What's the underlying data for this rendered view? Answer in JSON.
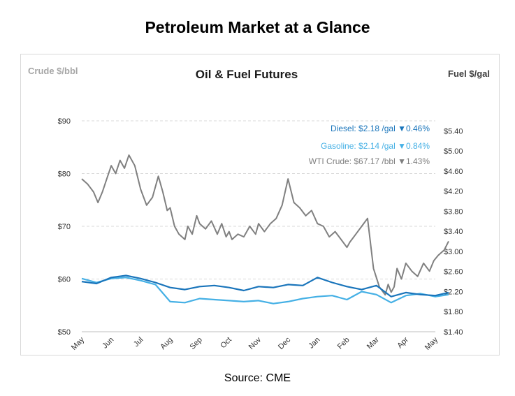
{
  "page": {
    "title": "Petroleum Market at a Glance",
    "source": "Source: CME"
  },
  "chart_data": {
    "type": "line",
    "title": "Oil & Fuel Futures",
    "left_axis_label": "Crude $/bbl",
    "right_axis_label": "Fuel $/gal",
    "left_ticks": [
      "$50",
      "$60",
      "$70",
      "$80",
      "$90"
    ],
    "left_range": [
      50,
      90
    ],
    "right_ticks": [
      "$1.40",
      "$1.80",
      "$2.20",
      "$2.60",
      "$3.00",
      "$3.40",
      "$3.80",
      "$4.20",
      "$4.60",
      "$5.00",
      "$5.40"
    ],
    "right_range": [
      1.4,
      5.6
    ],
    "x_labels": [
      "May",
      "Jun",
      "Jul",
      "Aug",
      "Sep",
      "Oct",
      "Nov",
      "Dec",
      "Jan",
      "Feb",
      "Mar",
      "Apr",
      "May"
    ],
    "grid": "horizontal dashed",
    "colors": {
      "diesel": "#1a75bb",
      "gasoline": "#45b0e5",
      "crude": "#808080"
    },
    "legend": [
      {
        "label": "Diesel:",
        "value": "$2.18 /gal",
        "change": "▼0.46%"
      },
      {
        "label": "Gasoline:",
        "value": "$2.14 /gal",
        "change": "▼0.84%"
      },
      {
        "label": "WTI Crude:",
        "value": "$67.17 /bbl",
        "change": "▼1.43%"
      }
    ],
    "series": [
      {
        "name": "WTI Crude",
        "axis": "left",
        "x": [
          0,
          0.2,
          0.4,
          0.55,
          0.7,
          0.85,
          1.0,
          1.15,
          1.3,
          1.45,
          1.6,
          1.8,
          2.0,
          2.2,
          2.4,
          2.6,
          2.75,
          2.9,
          3.0,
          3.15,
          3.3,
          3.5,
          3.6,
          3.75,
          3.9,
          4.0,
          4.2,
          4.4,
          4.6,
          4.75,
          4.9,
          5.0,
          5.1,
          5.3,
          5.5,
          5.7,
          5.9,
          6.0,
          6.2,
          6.4,
          6.6,
          6.8,
          7.0,
          7.2,
          7.4,
          7.6,
          7.8,
          8.0,
          8.2,
          8.4,
          8.6,
          8.8,
          9.0,
          9.1,
          9.3,
          9.5,
          9.7,
          9.9,
          10.1,
          10.3,
          10.4,
          10.5,
          10.6,
          10.7,
          10.85,
          11.0,
          11.2,
          11.4,
          11.6,
          11.8,
          11.95,
          12.1,
          12.3,
          12.45
        ],
        "values": [
          79.0,
          78.0,
          76.5,
          74.5,
          76.5,
          79.0,
          81.5,
          80.0,
          82.5,
          81.0,
          83.5,
          81.5,
          77.0,
          74.0,
          75.5,
          79.5,
          76.5,
          73.0,
          73.5,
          70.0,
          68.5,
          67.5,
          70.0,
          68.5,
          72.0,
          70.5,
          69.5,
          71.0,
          68.5,
          70.5,
          68.0,
          69.0,
          67.5,
          68.5,
          68.0,
          70.0,
          68.5,
          70.5,
          69.0,
          70.5,
          71.5,
          74.0,
          79.0,
          74.5,
          73.5,
          72.0,
          73.0,
          70.5,
          70.0,
          68.0,
          69.0,
          67.5,
          66.0,
          67.0,
          68.5,
          70.0,
          71.5,
          62.0,
          58.5,
          57.0,
          59.0,
          57.5,
          58.5,
          62.0,
          60.0,
          63.0,
          61.5,
          60.5,
          63.0,
          61.5,
          63.5,
          64.5,
          65.5,
          67.17
        ]
      },
      {
        "name": "Diesel",
        "axis": "right",
        "x": [
          0,
          0.5,
          1.0,
          1.5,
          2.0,
          2.5,
          3.0,
          3.5,
          4.0,
          4.5,
          5.0,
          5.5,
          6.0,
          6.5,
          7.0,
          7.5,
          8.0,
          8.5,
          9.0,
          9.5,
          10.0,
          10.5,
          11.0,
          11.5,
          12.0,
          12.45
        ],
        "values": [
          2.4,
          2.36,
          2.48,
          2.52,
          2.46,
          2.38,
          2.28,
          2.24,
          2.3,
          2.32,
          2.28,
          2.22,
          2.3,
          2.28,
          2.34,
          2.32,
          2.48,
          2.38,
          2.3,
          2.24,
          2.32,
          2.1,
          2.18,
          2.14,
          2.12,
          2.18
        ]
      },
      {
        "name": "Gasoline",
        "axis": "right",
        "x": [
          0,
          0.5,
          1.0,
          1.5,
          2.0,
          2.5,
          3.0,
          3.5,
          4.0,
          4.5,
          5.0,
          5.5,
          6.0,
          6.5,
          7.0,
          7.5,
          8.0,
          8.5,
          9.0,
          9.5,
          10.0,
          10.5,
          11.0,
          11.5,
          12.0,
          12.45
        ],
        "values": [
          2.46,
          2.38,
          2.46,
          2.48,
          2.42,
          2.34,
          2.0,
          1.98,
          2.06,
          2.04,
          2.02,
          2.0,
          2.02,
          1.96,
          2.0,
          2.06,
          2.1,
          2.12,
          2.04,
          2.2,
          2.14,
          1.98,
          2.12,
          2.16,
          2.1,
          2.14
        ]
      }
    ]
  }
}
